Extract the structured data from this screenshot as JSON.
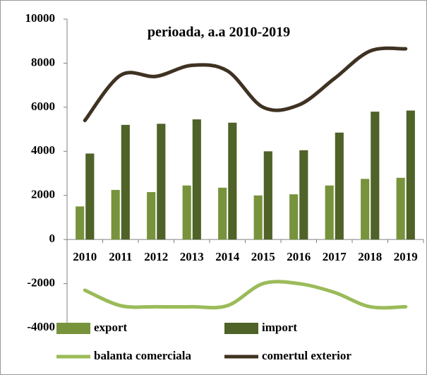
{
  "chart_data": {
    "type": "bar_line",
    "title": "perioada, a.a 2010-2019",
    "categories": [
      "2010",
      "2011",
      "2012",
      "2013",
      "2014",
      "2015",
      "2016",
      "2017",
      "2018",
      "2019"
    ],
    "series": [
      {
        "name": "export",
        "type": "bar",
        "color": "#77933c",
        "values": [
          1500,
          2250,
          2150,
          2450,
          2350,
          2000,
          2050,
          2450,
          2750,
          2800
        ]
      },
      {
        "name": "import",
        "type": "bar",
        "color": "#4f6228",
        "values": [
          3900,
          5200,
          5250,
          5450,
          5300,
          4000,
          4050,
          4850,
          5800,
          5850
        ]
      },
      {
        "name": "balanta comerciala",
        "type": "line",
        "color": "#9bbb59",
        "values": [
          -2300,
          -3000,
          -3050,
          -3050,
          -3000,
          -2000,
          -2000,
          -2400,
          -3050,
          -3050
        ]
      },
      {
        "name": "comertul exterior",
        "type": "line",
        "color": "#3f3222",
        "values": [
          5400,
          7450,
          7400,
          7900,
          7650,
          6000,
          6100,
          7300,
          8550,
          8650
        ]
      }
    ],
    "ylim": [
      -4000,
      10000
    ],
    "yticks": [
      -4000,
      -2000,
      0,
      2000,
      4000,
      6000,
      8000,
      10000
    ]
  }
}
